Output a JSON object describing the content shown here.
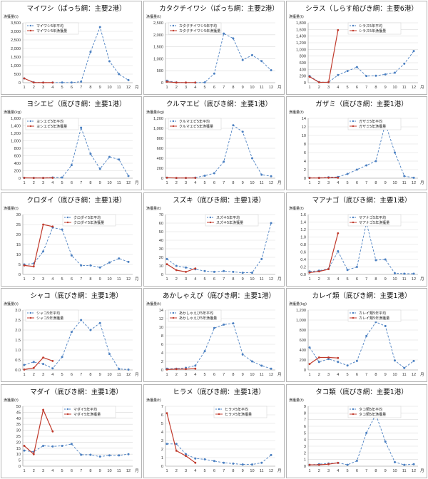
{
  "colors": {
    "avg": "#4a7fc1",
    "cur": "#c0392b",
    "grid": "#d9d9d9",
    "axis": "#888888"
  },
  "chart_data": [
    {
      "type": "line",
      "title": "マイワシ（ぱっち網：主要2港）",
      "ylabel": "漁獲量(t)",
      "xlabel": "月",
      "ylim": [
        0,
        3500
      ],
      "ytick_step": 500,
      "yticks_format": "comma",
      "x": [
        1,
        2,
        3,
        4,
        5,
        6,
        7,
        8,
        9,
        10,
        11,
        12
      ],
      "series": [
        {
          "name": "マイワシ5年平均",
          "style": "dashed",
          "values": [
            250,
            20,
            10,
            10,
            10,
            10,
            60,
            1800,
            3250,
            1250,
            500,
            150
          ]
        },
        {
          "name": "マイワシ5年漁獲量",
          "style": "solid",
          "values": [
            250,
            10,
            5,
            5,
            null,
            null,
            null,
            null,
            null,
            null,
            null,
            null
          ]
        }
      ]
    },
    {
      "type": "line",
      "title": "カタクチイワシ（ぱっち網：主要2港）",
      "ylabel": "漁獲量(t)",
      "xlabel": "月",
      "ylim": [
        0,
        2500
      ],
      "ytick_step": 500,
      "yticks_format": "comma",
      "x": [
        1,
        2,
        3,
        4,
        5,
        6,
        7,
        8,
        9,
        10,
        11,
        12
      ],
      "series": [
        {
          "name": "カタクチイワシ5年平均",
          "style": "dashed",
          "values": [
            80,
            10,
            5,
            5,
            10,
            380,
            2050,
            1850,
            950,
            1150,
            900,
            520
          ]
        },
        {
          "name": "カタクチイワシ5年漁獲量",
          "style": "solid",
          "values": [
            40,
            5,
            5,
            5,
            null,
            null,
            null,
            null,
            null,
            null,
            null,
            null
          ]
        }
      ]
    },
    {
      "type": "line",
      "title": "シラス（しらす船びき網：主要6港）",
      "ylabel": "漁獲量(t)",
      "xlabel": "月",
      "ylim": [
        0,
        1800
      ],
      "ytick_step": 200,
      "yticks_format": "comma",
      "x": [
        1,
        2,
        3,
        4,
        5,
        6,
        7,
        8,
        9,
        10,
        11,
        12
      ],
      "series": [
        {
          "name": "シラス5年平均",
          "style": "dashed",
          "values": [
            200,
            20,
            10,
            230,
            350,
            470,
            200,
            210,
            250,
            300,
            570,
            950
          ]
        },
        {
          "name": "シラス5年漁獲量",
          "style": "solid",
          "values": [
            180,
            10,
            15,
            1580,
            null,
            null,
            null,
            null,
            null,
            null,
            null,
            null
          ]
        }
      ]
    },
    {
      "type": "line",
      "title": "ヨシエビ（底びき網：主要1港）",
      "ylabel": "漁獲量(kg)",
      "xlabel": "月",
      "ylim": [
        0,
        1600
      ],
      "ytick_step": 200,
      "yticks_format": "comma",
      "x": [
        1,
        2,
        3,
        4,
        5,
        6,
        7,
        8,
        9,
        10,
        11,
        12
      ],
      "series": [
        {
          "name": "ヨシエビ5年平均",
          "style": "dashed",
          "values": [
            10,
            10,
            10,
            20,
            20,
            350,
            1350,
            650,
            250,
            570,
            500,
            60
          ]
        },
        {
          "name": "ヨシエビ5年漁獲量",
          "style": "solid",
          "values": [
            10,
            5,
            5,
            10,
            null,
            null,
            null,
            null,
            null,
            null,
            null,
            null
          ]
        }
      ]
    },
    {
      "type": "line",
      "title": "クルマエビ（底びき網：主要1港）",
      "ylabel": "漁獲量(kg)",
      "xlabel": "月",
      "ylim": [
        0,
        1200
      ],
      "ytick_step": 200,
      "yticks_format": "comma",
      "x": [
        1,
        2,
        3,
        4,
        5,
        6,
        7,
        8,
        9,
        10,
        11,
        12
      ],
      "series": [
        {
          "name": "クルマエビ5年平均",
          "style": "dashed",
          "values": [
            10,
            5,
            5,
            10,
            50,
            100,
            330,
            1060,
            930,
            400,
            70,
            40
          ]
        },
        {
          "name": "クルマエビ5年漁獲量",
          "style": "solid",
          "values": [
            10,
            5,
            5,
            5,
            null,
            null,
            null,
            null,
            null,
            null,
            null,
            null
          ]
        }
      ]
    },
    {
      "type": "line",
      "title": "ガザミ（底びき網：主要1港）",
      "ylabel": "漁獲量(t)",
      "xlabel": "月",
      "ylim": [
        0,
        14
      ],
      "ytick_step": 2,
      "yticks_format": "int",
      "x": [
        1,
        2,
        3,
        4,
        5,
        6,
        7,
        8,
        9,
        10,
        11,
        12
      ],
      "series": [
        {
          "name": "ガザミ5年平均",
          "style": "dashed",
          "values": [
            0.1,
            0.1,
            0.2,
            0.3,
            1,
            2,
            3,
            4,
            12.8,
            6,
            0.5,
            0.1
          ]
        },
        {
          "name": "ガザミ5年漁獲量",
          "style": "solid",
          "values": [
            0.05,
            0.05,
            0.1,
            0.1,
            null,
            null,
            null,
            null,
            null,
            null,
            null,
            null
          ]
        }
      ]
    },
    {
      "type": "line",
      "title": "クロダイ（底びき網：主要1港）",
      "ylabel": "漁獲量(t)",
      "xlabel": "月",
      "ylim": [
        0,
        30
      ],
      "ytick_step": 5,
      "yticks_format": "int",
      "x": [
        1,
        2,
        3,
        4,
        5,
        6,
        7,
        8,
        9,
        10,
        11,
        12
      ],
      "series": [
        {
          "name": "クロダイ5年平均",
          "style": "dashed",
          "values": [
            5,
            5.5,
            11.5,
            23.5,
            22.5,
            9.5,
            4.5,
            4.5,
            3.5,
            6,
            8,
            6.3
          ]
        },
        {
          "name": "クロダイ5年漁獲量",
          "style": "solid",
          "values": [
            4.5,
            4,
            25,
            24,
            null,
            null,
            null,
            null,
            null,
            null,
            null,
            null
          ]
        }
      ]
    },
    {
      "type": "line",
      "title": "スズキ（底びき網：主要1港）",
      "ylabel": "漁獲量(t)",
      "xlabel": "月",
      "ylim": [
        0,
        70
      ],
      "ytick_step": 10,
      "yticks_format": "int",
      "x": [
        1,
        2,
        3,
        4,
        5,
        6,
        7,
        8,
        9,
        10,
        11,
        12
      ],
      "series": [
        {
          "name": "スズキ5年平均",
          "style": "dashed",
          "values": [
            18,
            10,
            8,
            6,
            4,
            3,
            4,
            3,
            2,
            2,
            18,
            60
          ]
        },
        {
          "name": "スズキ5年漁獲量",
          "style": "solid",
          "values": [
            12,
            5,
            3,
            7,
            null,
            null,
            null,
            null,
            null,
            null,
            null,
            null
          ]
        }
      ]
    },
    {
      "type": "line",
      "title": "マアナゴ（底びき網：主要1港）",
      "ylabel": "漁獲量(t)",
      "xlabel": "月",
      "ylim": [
        0,
        1.6
      ],
      "ytick_step": 0.2,
      "yticks_format": "1dp",
      "x": [
        1,
        2,
        3,
        4,
        5,
        6,
        7,
        8,
        9,
        10,
        11,
        12
      ],
      "series": [
        {
          "name": "マアナゴ5年平均",
          "style": "dashed",
          "values": [
            0.08,
            0.1,
            0.15,
            0.62,
            0.12,
            0.2,
            1.38,
            0.38,
            0.4,
            0.03,
            0.02,
            0.02
          ]
        },
        {
          "name": "マアナゴ5年漁獲量",
          "style": "solid",
          "values": [
            0.05,
            0.08,
            0.14,
            1.1,
            null,
            null,
            null,
            null,
            null,
            null,
            null,
            null
          ]
        }
      ]
    },
    {
      "type": "line",
      "title": "シャコ（底びき網：主要1港）",
      "ylabel": "漁獲量(t)",
      "xlabel": "月",
      "ylim": [
        0,
        3
      ],
      "ytick_step": 0.5,
      "yticks_format": "1dp",
      "x": [
        1,
        2,
        3,
        4,
        5,
        6,
        7,
        8,
        9,
        10,
        11,
        12
      ],
      "series": [
        {
          "name": "シャコ5年平均",
          "style": "dashed",
          "values": [
            0.25,
            0.4,
            0.3,
            0.08,
            0.65,
            1.9,
            2.5,
            2,
            2.35,
            0.8,
            0.05,
            0.02
          ]
        },
        {
          "name": "シャコ5年漁獲量",
          "style": "solid",
          "values": [
            0.02,
            0.1,
            0.62,
            0.45,
            null,
            null,
            null,
            null,
            null,
            null,
            null,
            null
          ]
        }
      ]
    },
    {
      "type": "line",
      "title": "あかしゃえび（底びき網：主要1港）",
      "ylabel": "漁獲量(t)",
      "xlabel": "月",
      "ylim": [
        0,
        14
      ],
      "ytick_step": 2,
      "yticks_format": "int",
      "x": [
        1,
        2,
        3,
        4,
        5,
        6,
        7,
        8,
        9,
        10,
        11,
        12
      ],
      "series": [
        {
          "name": "あかしゃえび5年平均",
          "style": "dashed",
          "values": [
            0.3,
            0.3,
            0.5,
            1,
            4.4,
            9.8,
            10.6,
            10.9,
            3.6,
            2,
            1,
            0.3
          ]
        },
        {
          "name": "あかしゃえび5年漁獲量",
          "style": "solid",
          "values": [
            0.1,
            0.2,
            0.2,
            0.3,
            null,
            null,
            null,
            null,
            null,
            null,
            null,
            null
          ]
        }
      ]
    },
    {
      "type": "line",
      "title": "カレイ類（底びき網：主要1港）",
      "ylabel": "漁獲量(kg)",
      "xlabel": "月",
      "ylim": [
        0,
        1200
      ],
      "ytick_step": 200,
      "yticks_format": "comma",
      "x": [
        1,
        2,
        3,
        4,
        5,
        6,
        7,
        8,
        9,
        10,
        11,
        12
      ],
      "series": [
        {
          "name": "カレイ類5年平均",
          "style": "dashed",
          "values": [
            450,
            160,
            220,
            160,
            90,
            180,
            680,
            960,
            880,
            190,
            40,
            180
          ]
        },
        {
          "name": "カレイ類5年漁獲量",
          "style": "solid",
          "values": [
            120,
            250,
            250,
            240,
            null,
            null,
            null,
            null,
            null,
            null,
            null,
            null
          ]
        }
      ]
    },
    {
      "type": "line",
      "title": "マダイ（底びき網：主要1港）",
      "ylabel": "漁獲量(t)",
      "xlabel": "月",
      "ylim": [
        0,
        50
      ],
      "ytick_step": 5,
      "yticks_format": "int",
      "x": [
        1,
        2,
        3,
        4,
        5,
        6,
        7,
        8,
        9,
        10,
        11,
        12
      ],
      "series": [
        {
          "name": "マダイ5年平均",
          "style": "dashed",
          "values": [
            13,
            12,
            17,
            16.5,
            17,
            18.5,
            9.5,
            9.5,
            8,
            9,
            9,
            10
          ]
        },
        {
          "name": "マダイ5年漁獲量",
          "style": "solid",
          "values": [
            17,
            10,
            47,
            29,
            null,
            null,
            null,
            null,
            null,
            null,
            null,
            null
          ]
        }
      ]
    },
    {
      "type": "line",
      "title": "ヒラメ（底びき網：主要1港）",
      "ylabel": "漁獲量(t)",
      "xlabel": "月",
      "ylim": [
        0,
        7
      ],
      "ytick_step": 1,
      "yticks_format": "int",
      "x": [
        1,
        2,
        3,
        4,
        5,
        6,
        7,
        8,
        9,
        10,
        11,
        12
      ],
      "series": [
        {
          "name": "ヒラメ5年平均",
          "style": "dashed",
          "values": [
            2.6,
            2.6,
            1.4,
            0.9,
            0.8,
            0.6,
            0.4,
            0.3,
            0.2,
            0.2,
            0.4,
            1.3
          ]
        },
        {
          "name": "ヒラメ5年漁獲量",
          "style": "solid",
          "values": [
            6.2,
            1.8,
            1.2,
            0.4,
            null,
            null,
            null,
            null,
            null,
            null,
            null,
            null
          ]
        }
      ]
    },
    {
      "type": "line",
      "title": "タコ類（底びき網：主要1港）",
      "ylabel": "漁獲量(t)",
      "xlabel": "月",
      "ylim": [
        0,
        9
      ],
      "ytick_step": 1,
      "yticks_format": "int",
      "x": [
        1,
        2,
        3,
        4,
        5,
        6,
        7,
        8,
        9,
        10,
        11,
        12
      ],
      "series": [
        {
          "name": "タコ類5年平均",
          "style": "dashed",
          "values": [
            0.2,
            0.3,
            0.4,
            0.5,
            0.2,
            0.8,
            5,
            7.8,
            3.7,
            0.6,
            0.2,
            0.3
          ]
        },
        {
          "name": "タコ類5年漁獲量",
          "style": "solid",
          "values": [
            0.2,
            0.2,
            0.3,
            0.5,
            null,
            null,
            null,
            null,
            null,
            null,
            null,
            null
          ]
        }
      ]
    }
  ]
}
